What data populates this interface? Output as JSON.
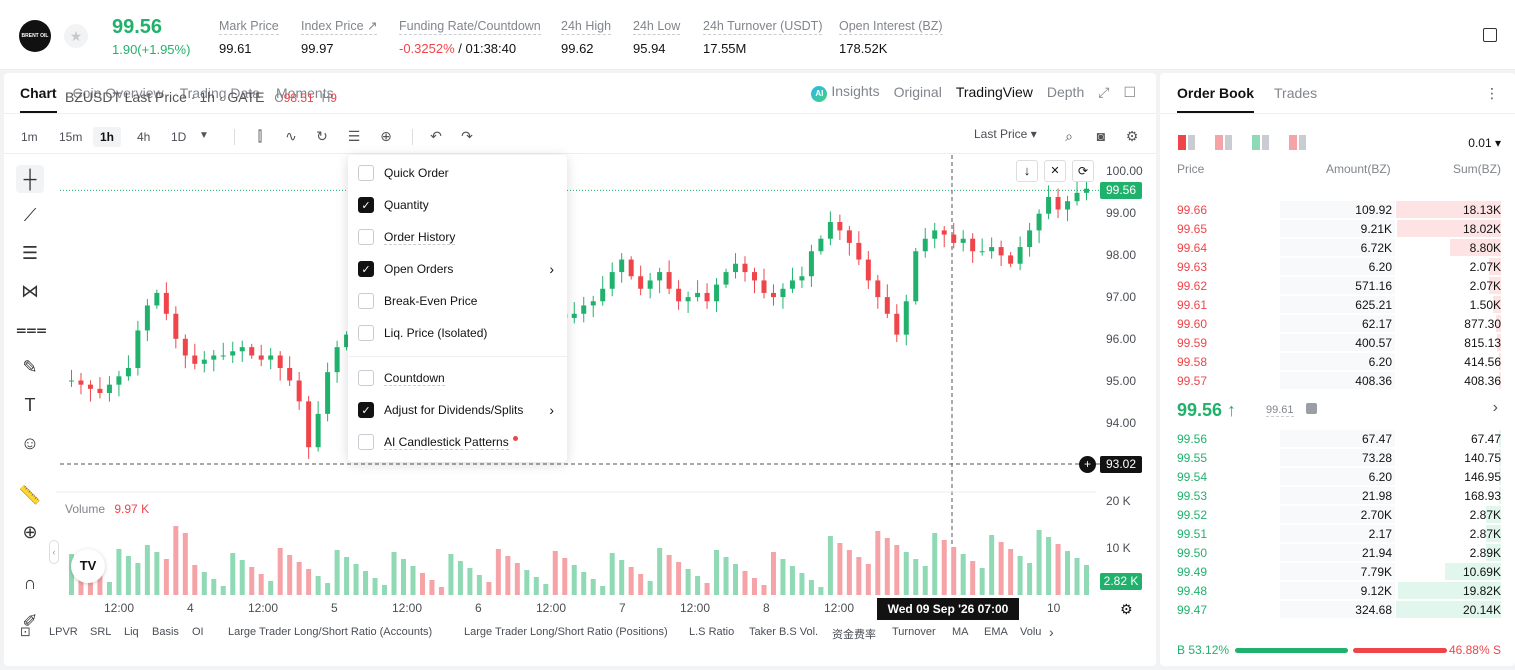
{
  "ticker": {
    "logo_text": "BRENT OIL",
    "last_price": "99.56",
    "change": "1.90(+1.95%)",
    "stats": [
      {
        "label": "Mark Price",
        "value": "99.61"
      },
      {
        "label": "Index Price ↗",
        "value": "99.97"
      },
      {
        "label": "Funding Rate/Countdown",
        "value_red": "-0.3252%",
        "value": " / 01:38:40"
      },
      {
        "label": "24h High",
        "value": "99.62"
      },
      {
        "label": "24h Low",
        "value": "95.94"
      },
      {
        "label": "24h Turnover (USDT)",
        "value": "17.55M"
      },
      {
        "label": "Open Interest (BZ)",
        "value": "178.52K"
      }
    ]
  },
  "chart_tabs": [
    "Chart",
    "Coin Overview",
    "Trading Data",
    "Moments"
  ],
  "chart_views": {
    "insights": "Insights",
    "original": "Original",
    "tradingview": "TradingView",
    "depth": "Depth"
  },
  "timeframes": [
    "1m",
    "15m",
    "1h",
    "4h",
    "1D"
  ],
  "last_price_selector": "Last Price ▾",
  "symbol_line": {
    "title": "BZUSDT Last Price · 1h · GATE",
    "o_label": "O",
    "o_value": "98.51",
    "h_label": "H",
    "h_value": "9"
  },
  "y_axis": [
    "100.00",
    "99.00",
    "98.00",
    "97.00",
    "96.00",
    "95.00",
    "94.00"
  ],
  "price_badge": "99.56",
  "cross_badge": "93.02",
  "vol_axis": [
    "20 K",
    "10 K"
  ],
  "vol_badge": "2.82 K",
  "volume": {
    "label": "Volume",
    "value": "9.97 K"
  },
  "x_axis": [
    "12:00",
    "4",
    "12:00",
    "5",
    "12:00",
    "6",
    "12:00",
    "7",
    "12:00",
    "8",
    "12:00",
    "10"
  ],
  "crosshair_date": "Wed 09 Sep '26   07:00",
  "indicators": [
    "LPVR",
    "SRL",
    "Liq",
    "Basis",
    "OI",
    "Large Trader Long/Short Ratio (Accounts)",
    "Large Trader Long/Short Ratio (Positions)",
    "L.S Ratio",
    "Taker B.S Vol.",
    "资金费率",
    "Turnover",
    "MA",
    "EMA",
    "Volu"
  ],
  "menu": [
    {
      "label": "Quick Order",
      "checked": false,
      "underline": false,
      "arrow": false
    },
    {
      "label": "Quantity",
      "checked": true,
      "underline": false,
      "arrow": false
    },
    {
      "label": "Order History",
      "checked": false,
      "underline": true,
      "arrow": false
    },
    {
      "label": "Open Orders",
      "checked": true,
      "underline": false,
      "arrow": true
    },
    {
      "label": "Break-Even Price",
      "checked": false,
      "underline": false,
      "arrow": false
    },
    {
      "label": "Liq. Price (Isolated)",
      "checked": false,
      "underline": false,
      "arrow": false
    },
    {
      "label": "Countdown",
      "checked": false,
      "underline": true,
      "arrow": false
    },
    {
      "label": "Adjust for Dividends/Splits",
      "checked": true,
      "underline": false,
      "arrow": true
    },
    {
      "label": "AI Candlestick Patterns",
      "checked": false,
      "underline": true,
      "arrow": false,
      "dot": true
    }
  ],
  "orderbook": {
    "tabs": [
      "Order Book",
      "Trades"
    ],
    "precision": "0.01 ▾",
    "headers": {
      "price": "Price",
      "amount": "Amount(BZ)",
      "sum": "Sum(BZ)"
    },
    "asks": [
      {
        "price": "99.66",
        "amount": "109.92",
        "sum": "18.13K",
        "depth": 100
      },
      {
        "price": "99.65",
        "amount": "9.21K",
        "sum": "18.02K",
        "depth": 99
      },
      {
        "price": "99.64",
        "amount": "6.72K",
        "sum": "8.80K",
        "depth": 49
      },
      {
        "price": "99.63",
        "amount": "6.20",
        "sum": "2.07K",
        "depth": 11
      },
      {
        "price": "99.62",
        "amount": "571.16",
        "sum": "2.07K",
        "depth": 11
      },
      {
        "price": "99.61",
        "amount": "625.21",
        "sum": "1.50K",
        "depth": 8
      },
      {
        "price": "99.60",
        "amount": "62.17",
        "sum": "877.30",
        "depth": 5
      },
      {
        "price": "99.59",
        "amount": "400.57",
        "sum": "815.13",
        "depth": 4
      },
      {
        "price": "99.58",
        "amount": "6.20",
        "sum": "414.56",
        "depth": 2
      },
      {
        "price": "99.57",
        "amount": "408.36",
        "sum": "408.36",
        "depth": 2
      }
    ],
    "mid_price": "99.56 ↑",
    "mid_mark": "99.61",
    "bids": [
      {
        "price": "99.56",
        "amount": "67.47",
        "sum": "67.47",
        "depth": 0
      },
      {
        "price": "99.55",
        "amount": "73.28",
        "sum": "140.75",
        "depth": 1
      },
      {
        "price": "99.54",
        "amount": "6.20",
        "sum": "146.95",
        "depth": 1
      },
      {
        "price": "99.53",
        "amount": "21.98",
        "sum": "168.93",
        "depth": 1
      },
      {
        "price": "99.52",
        "amount": "2.70K",
        "sum": "2.87K",
        "depth": 14
      },
      {
        "price": "99.51",
        "amount": "2.17",
        "sum": "2.87K",
        "depth": 14
      },
      {
        "price": "99.50",
        "amount": "21.94",
        "sum": "2.89K",
        "depth": 14
      },
      {
        "price": "99.49",
        "amount": "7.79K",
        "sum": "10.69K",
        "depth": 53
      },
      {
        "price": "99.48",
        "amount": "9.12K",
        "sum": "19.82K",
        "depth": 98
      },
      {
        "price": "99.47",
        "amount": "324.68",
        "sum": "20.14K",
        "depth": 100
      }
    ],
    "buy_ratio": "B 53.12%",
    "sell_ratio": "46.88% S"
  },
  "colors": {
    "up": "#20b26c",
    "down": "#ef454a",
    "up_vol": "#8fd9b5",
    "down_vol": "#f5a3a6"
  }
}
